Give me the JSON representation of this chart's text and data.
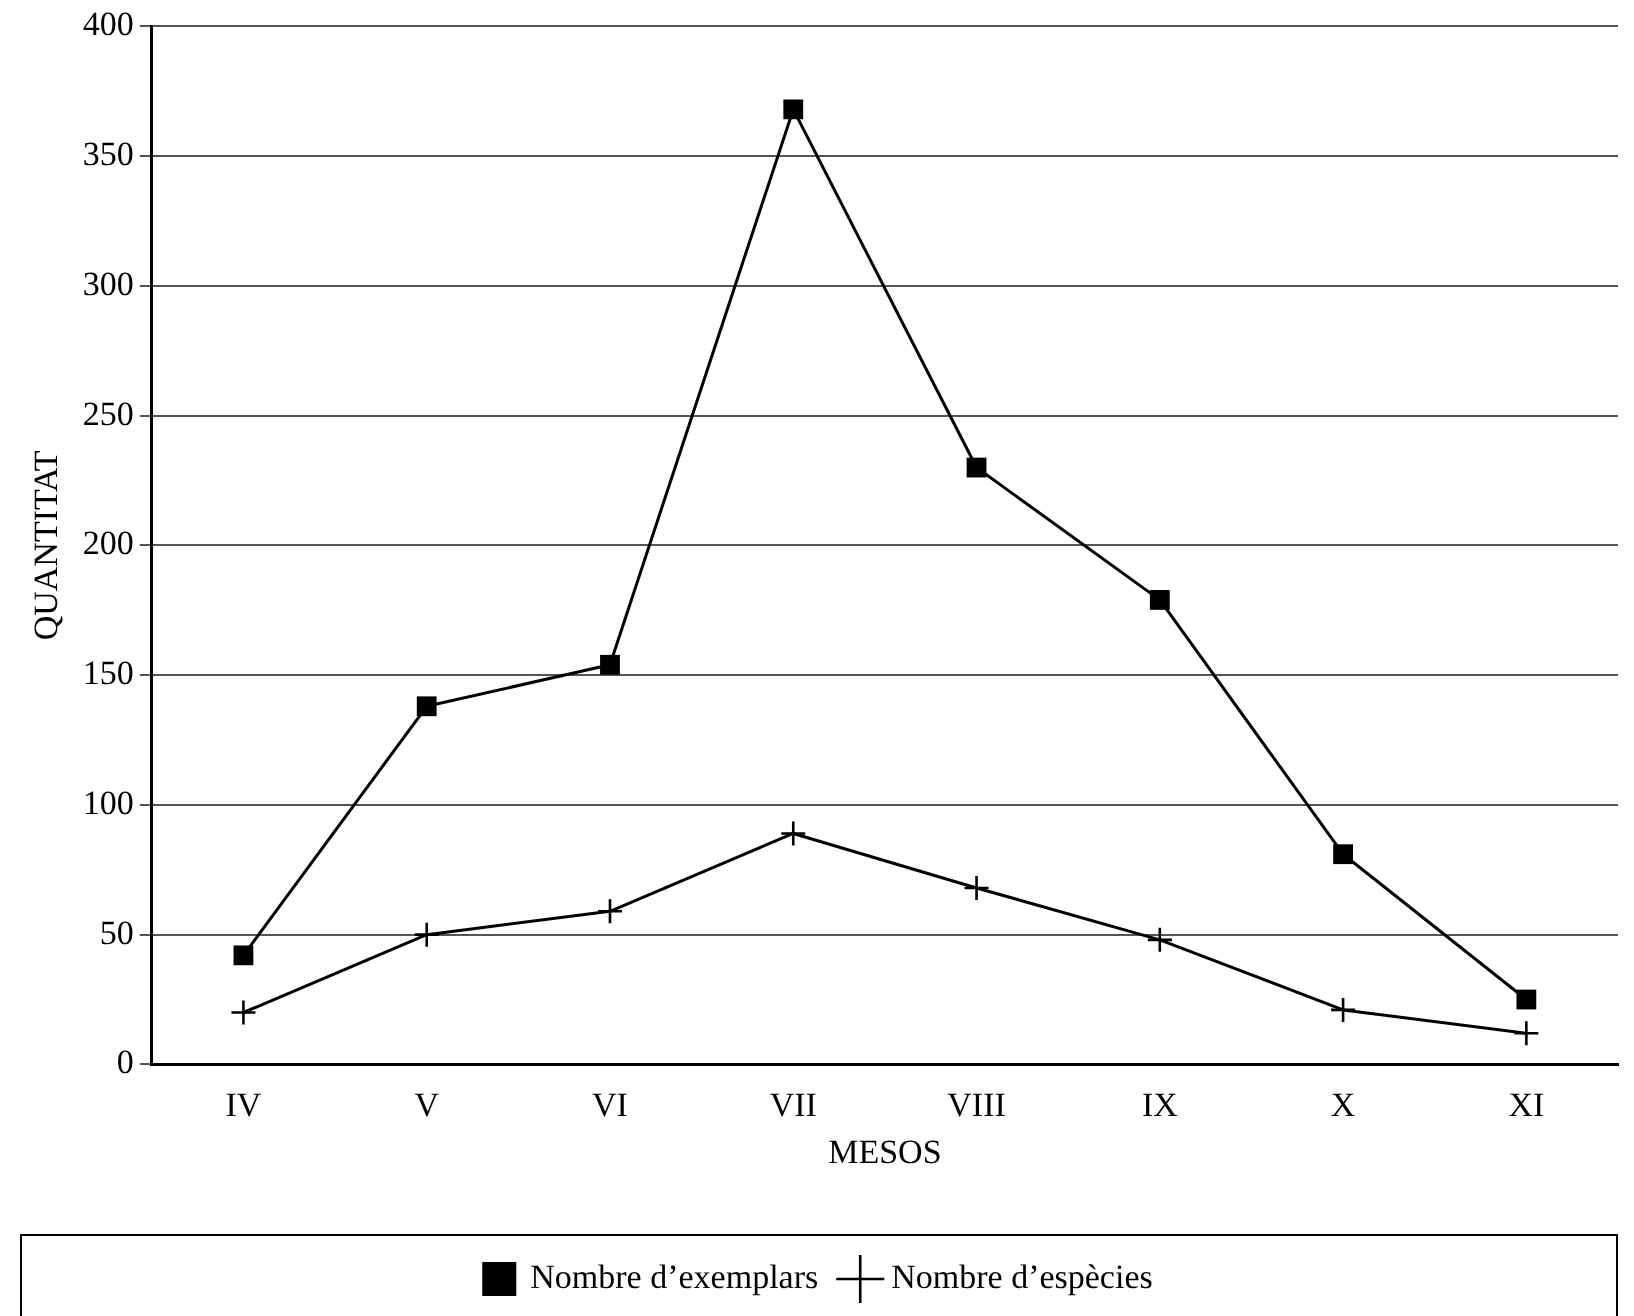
{
  "chart_data": {
    "type": "line",
    "xlabel": "MESOS",
    "ylabel": "QUANTITAT",
    "categories": [
      "IV",
      "V",
      "VI",
      "VII",
      "VIII",
      "IX",
      "X",
      "XI"
    ],
    "series": [
      {
        "name": "Nombre d’exemplars",
        "color": "#000000",
        "marker": "square",
        "values": [
          42,
          138,
          154,
          368,
          230,
          179,
          81,
          25
        ]
      },
      {
        "name": "Nombre d’espècies",
        "color": "#000000",
        "marker": "cross",
        "values": [
          20,
          50,
          59,
          89,
          68,
          48,
          21,
          12
        ]
      }
    ],
    "ylim": [
      0,
      400
    ],
    "yticks": [
      0,
      50,
      100,
      150,
      200,
      250,
      300,
      350,
      400
    ],
    "grid": "y",
    "legend": "bottom",
    "line_style": "solid"
  }
}
